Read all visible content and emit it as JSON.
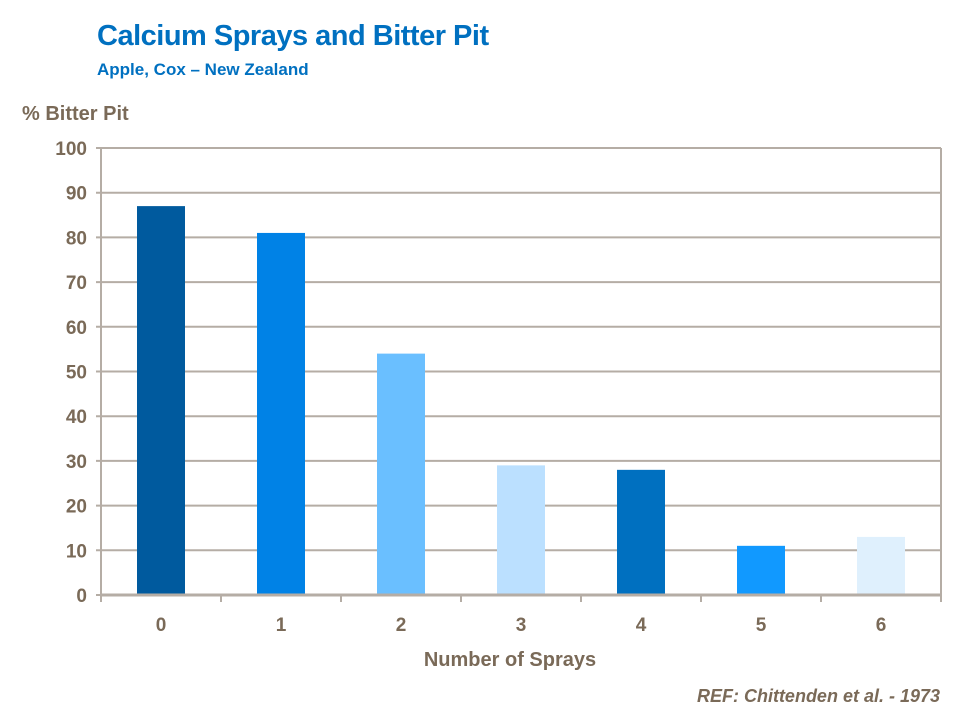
{
  "chart_data": {
    "type": "bar",
    "title": "Calcium Sprays and Bitter Pit",
    "subtitle": "Apple, Cox – New Zealand",
    "ylabel": "% Bitter Pit",
    "xlabel": "Number of Sprays",
    "categories": [
      "0",
      "1",
      "2",
      "3",
      "4",
      "5",
      "6"
    ],
    "values": [
      87,
      81,
      54,
      29,
      28,
      11,
      13
    ],
    "bar_colors": [
      "#005A9E",
      "#0082E6",
      "#6ABFFF",
      "#BBE0FF",
      "#0070C0",
      "#1199FF",
      "#DFF0FD"
    ],
    "ylim": [
      0,
      100
    ],
    "yticks": [
      0,
      10,
      20,
      30,
      40,
      50,
      60,
      70,
      80,
      90,
      100
    ],
    "grid": true,
    "reference": "REF: Chittenden et al. - 1973"
  },
  "colors": {
    "title": "#0070C0",
    "axis_text": "#7A6A58",
    "grid": "#B5ADA5"
  }
}
